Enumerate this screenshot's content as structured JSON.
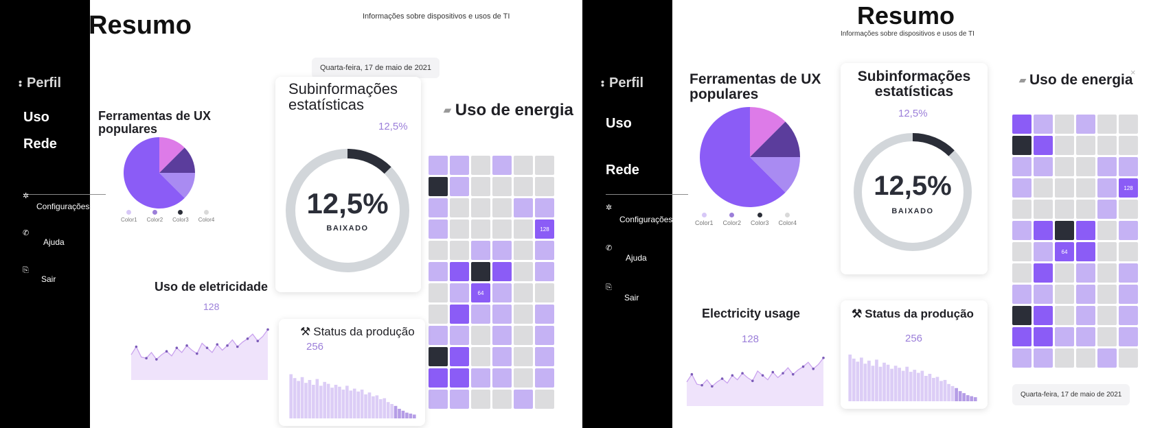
{
  "sidebar": {
    "profile": "Perfil",
    "links": [
      "Uso",
      "Rede"
    ],
    "items": [
      {
        "label": "Configurações",
        "icon": "gear-icon",
        "glyph": "✲"
      },
      {
        "label": "Ajuda",
        "icon": "phone-icon",
        "glyph": "✆"
      },
      {
        "label": "Sair",
        "icon": "logout-icon",
        "glyph": "⎘"
      }
    ]
  },
  "header": {
    "title": "Resumo",
    "subtitle": "Informações sobre dispositivos e usos de TI",
    "date": "Quarta-feira, 17 de maio de 2021"
  },
  "ux_tools": {
    "title_line1": "Ferramentas de UX",
    "title_line2": "populares",
    "legend": [
      "Color1",
      "Color2",
      "Color3",
      "Color4"
    ]
  },
  "stats": {
    "title_line1": "Subinformações",
    "title_line2": "estatísticas",
    "percent": "12,5%",
    "status": "BAIXADO",
    "progress": 0.125
  },
  "energy": {
    "title": "Uso de energia",
    "icon": "folder-icon",
    "label_a": "128",
    "label_b": "64"
  },
  "electricity": {
    "title_a": "Uso de eletricidade",
    "title_b": "Electricity usage",
    "value": "128"
  },
  "production": {
    "title": "Status da produção",
    "icon": "hammer-pick-icon",
    "value": "256"
  },
  "colors": {
    "accent": "#8b5cf6",
    "light": "#c4b1f5",
    "dark": "#2b2e38",
    "grey": "#d9d9d9",
    "pink": "#dd7be8",
    "deep": "#5b3d9c",
    "lilac": "#a98bf2",
    "fill": "#efe3fb"
  },
  "chart_data": [
    {
      "type": "pie",
      "title": "Ferramentas de UX populares",
      "categories": [
        "Color1",
        "Color2",
        "Color3",
        "Color4"
      ],
      "values": [
        12.5,
        12.5,
        12.5,
        62.5
      ]
    },
    {
      "type": "line",
      "title": "Uso de eletricidade",
      "values": [
        44,
        58,
        40,
        38,
        48,
        36,
        44,
        50,
        42,
        56,
        48,
        60,
        52,
        46,
        64,
        56,
        48,
        62,
        52,
        60,
        70,
        58,
        66,
        72,
        80,
        68,
        76,
        88
      ]
    },
    {
      "type": "bar",
      "title": "Status da produção",
      "values": [
        92,
        84,
        78,
        86,
        74,
        80,
        70,
        82,
        68,
        76,
        72,
        64,
        70,
        66,
        60,
        68,
        58,
        62,
        56,
        60,
        50,
        54,
        46,
        48,
        40,
        42,
        34,
        30,
        26,
        20,
        16,
        12,
        10,
        8
      ]
    }
  ]
}
